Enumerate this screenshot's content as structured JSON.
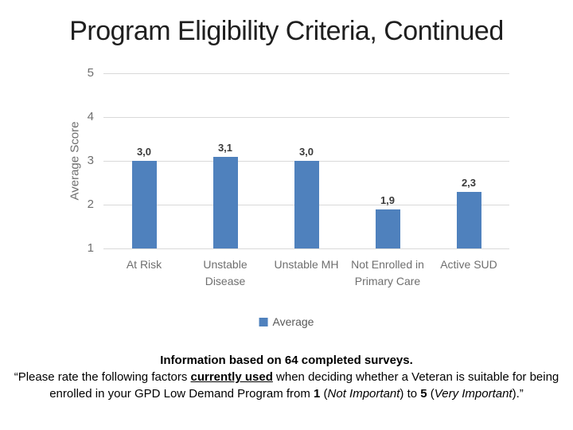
{
  "slide": {
    "title": "Program Eligibility Criteria, Continued",
    "footer": {
      "line1": "Information based on 64 completed surveys.",
      "quote": {
        "part1": "“Please rate the following factors ",
        "underline": "currently used",
        "part2": " when deciding whether a Veteran is suitable for being enrolled in your GPD Low Demand Program from ",
        "num1": "1",
        "part3": " (",
        "italic1": "Not Important",
        "part4": ") to ",
        "num2": "5",
        "part5": " (",
        "italic2": "Very Important",
        "part6": ").”"
      }
    }
  },
  "chart_data": {
    "type": "bar",
    "title": "",
    "categories": [
      "At Risk",
      "Unstable Disease",
      "Unstable MH",
      "Not Enrolled in Primary Care",
      "Active SUD"
    ],
    "values": [
      3.0,
      3.1,
      3.0,
      1.9,
      2.3
    ],
    "value_labels": [
      "3,0",
      "3,1",
      "3,0",
      "1,9",
      "2,3"
    ],
    "series_name": "Average",
    "xlabel": "",
    "ylabel": "Average Score",
    "ylim": [
      1,
      5
    ],
    "y_ticks": [
      5,
      4,
      3,
      2,
      1
    ],
    "grid": true,
    "legend_position": "bottom",
    "colors": {
      "bar": "#4f81bd",
      "gridline": "#d9d9d9",
      "axis_text": "#6f6f6f",
      "data_label": "#3a3a3a",
      "legend_text": "#595959"
    }
  }
}
